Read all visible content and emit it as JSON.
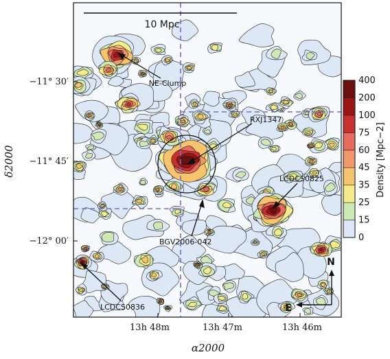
{
  "chart_data": {
    "type": "heatmap",
    "title": "",
    "xlabel": "α2000",
    "ylabel": "δ2000",
    "x_ticks": [
      "13h 48m",
      "13h 47m",
      "13h 46m"
    ],
    "y_ticks": [
      "−11° 30′",
      "−11° 45′",
      "−12° 00′"
    ],
    "scale_bar": "10 Mpc",
    "colorbar": {
      "label": "Density [Mpc−2]",
      "levels": [
        0,
        15,
        25,
        35,
        45,
        60,
        75,
        100,
        200,
        400
      ],
      "colors": [
        "#f7f9fc",
        "#dce8f5",
        "#cfe9b4",
        "#f4ec8a",
        "#f6c46d",
        "#f1986a",
        "#e66a5d",
        "#c8302f",
        "#9b1414",
        "#6b0f0f"
      ]
    },
    "annotations": [
      {
        "label": "NE-Clump",
        "kind": "peak"
      },
      {
        "label": "RXJ1347",
        "kind": "cluster"
      },
      {
        "label": "LCDCS0825",
        "kind": "cluster"
      },
      {
        "label": "BGV2006-042",
        "kind": "cluster"
      },
      {
        "label": "LCDCS0836",
        "kind": "cluster"
      }
    ],
    "compass": {
      "north": "N",
      "east": "E"
    },
    "grid": false
  }
}
